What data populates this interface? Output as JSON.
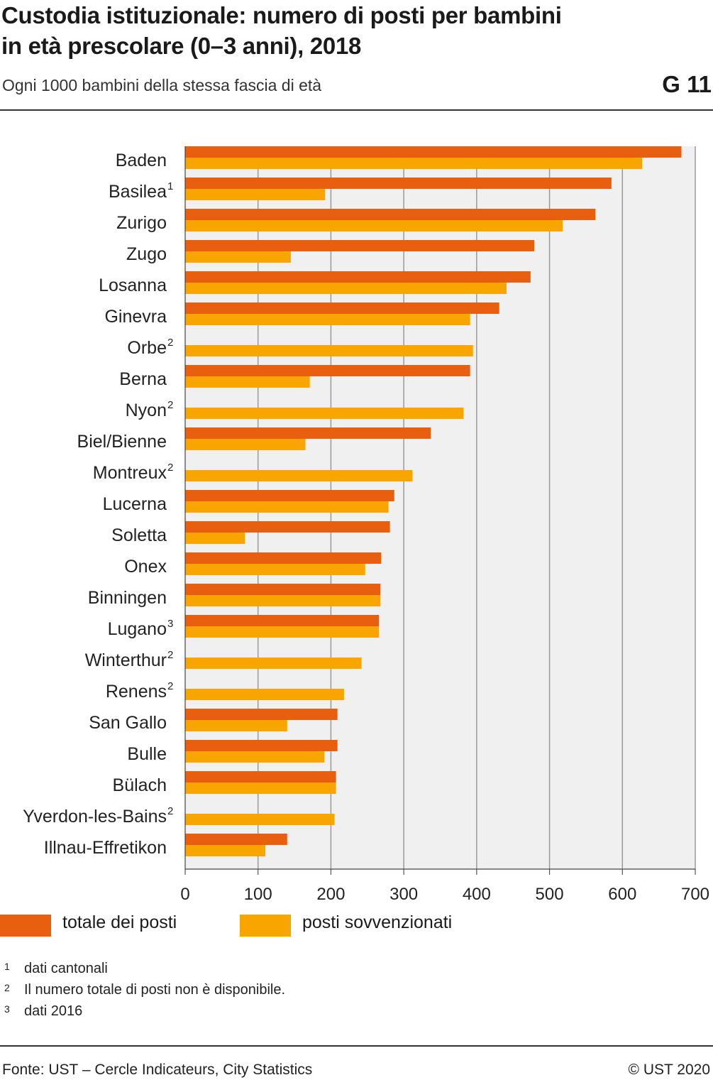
{
  "header": {
    "title_line1": "Custodia istituzionale: numero di posti per bambini",
    "title_line2": "in età prescolare (0–3 anni), 2018",
    "subtitle": "Ogni 1000 bambini della stessa fascia di età",
    "code": "G 11"
  },
  "chart_data": {
    "type": "bar",
    "orientation": "horizontal",
    "categories": [
      "Baden",
      "Basilea",
      "Zurigo",
      "Zugo",
      "Losanna",
      "Ginevra",
      "Orbe",
      "Berna",
      "Nyon",
      "Biel/Bienne",
      "Montreux",
      "Lucerna",
      "Soletta",
      "Onex",
      "Binningen",
      "Lugano",
      "Winterthur",
      "Renens",
      "San Gallo",
      "Bulle",
      "Bülach",
      "Yverdon-les-Bains",
      "Illnau-Effretikon"
    ],
    "category_superscripts": [
      "",
      "1",
      "",
      "",
      "",
      "",
      "2",
      "",
      "2",
      "",
      "2",
      "",
      "",
      "",
      "",
      "3",
      "2",
      "2",
      "",
      "",
      "",
      "2",
      ""
    ],
    "series": [
      {
        "name": "totale dei posti",
        "color": "#e8600f",
        "values": [
          681,
          585,
          563,
          479,
          474,
          431,
          null,
          391,
          null,
          337,
          null,
          287,
          281,
          269,
          268,
          266,
          null,
          null,
          209,
          209,
          207,
          null,
          140
        ]
      },
      {
        "name": "posti sovvenzionati",
        "color": "#f8a500",
        "values": [
          627,
          192,
          518,
          145,
          441,
          391,
          395,
          171,
          382,
          165,
          312,
          279,
          82,
          247,
          268,
          266,
          242,
          218,
          140,
          191,
          207,
          205,
          110
        ]
      }
    ],
    "xlim": [
      0,
      700
    ],
    "xticks": [
      0,
      100,
      200,
      300,
      400,
      500,
      600,
      700
    ],
    "grid": true,
    "legend": "bottom-left"
  },
  "legend": {
    "total": "totale dei posti",
    "subsidized": "posti sovvenzionati"
  },
  "notes": [
    {
      "num": "1",
      "text": "dati cantonali"
    },
    {
      "num": "2",
      "text": "Il numero totale di posti non è disponibile."
    },
    {
      "num": "3",
      "text": "dati 2016"
    }
  ],
  "footer": {
    "source": "Fonte: UST – Cercle Indicateurs, City Statistics",
    "copyright": "© UST 2020"
  }
}
